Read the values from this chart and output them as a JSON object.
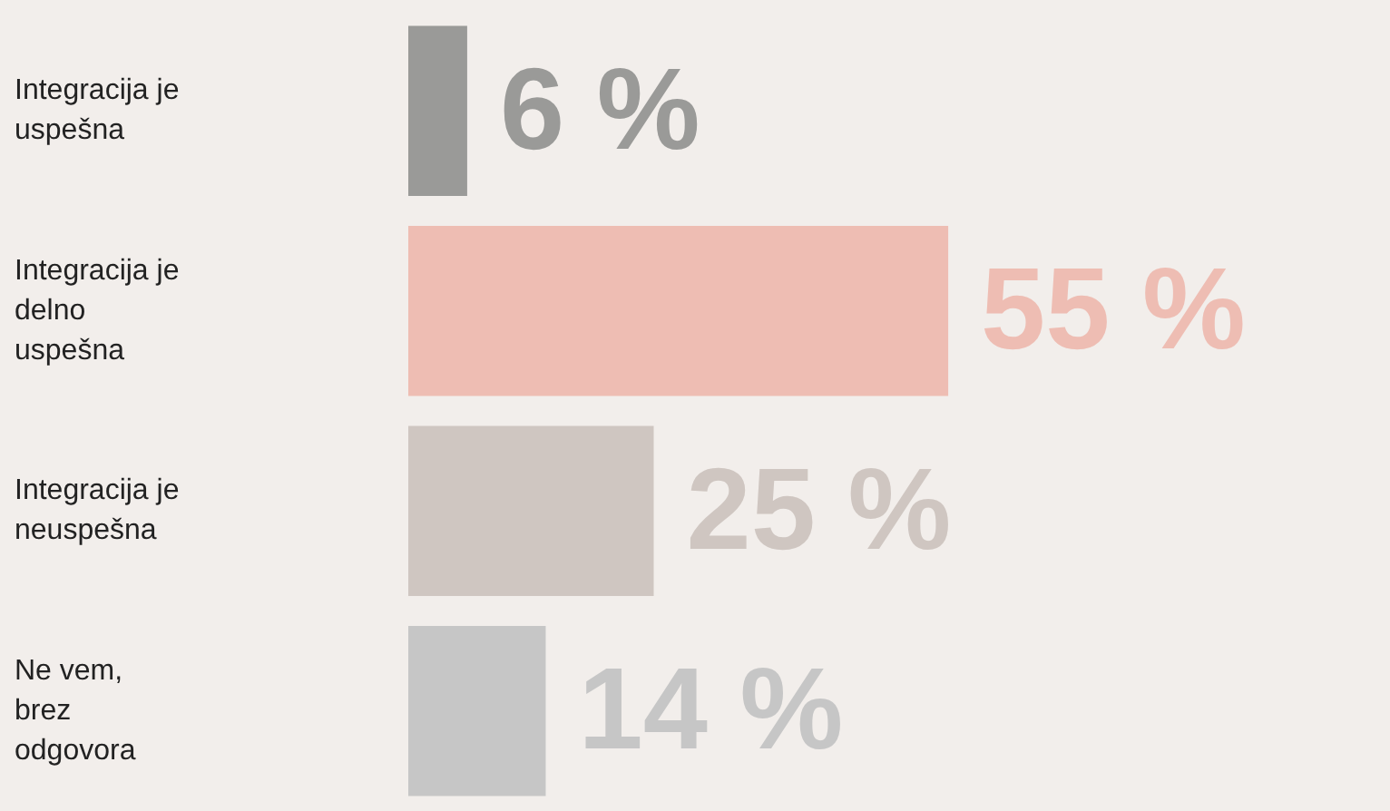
{
  "chart_data": {
    "type": "bar",
    "orientation": "horizontal",
    "legend": false,
    "grid": false,
    "categories": [
      "Integracija je uspešna",
      "Integracija je delno uspešna",
      "Integracija je neuspešna",
      "Ne vem, brez odgovora"
    ],
    "values": [
      6,
      55,
      25,
      14
    ],
    "value_labels": [
      "6 %",
      "55 %",
      "25 %",
      "14 %"
    ],
    "colors": [
      "#9a9a98",
      "#eebdb3",
      "#cfc6c1",
      "#c6c6c6"
    ]
  }
}
